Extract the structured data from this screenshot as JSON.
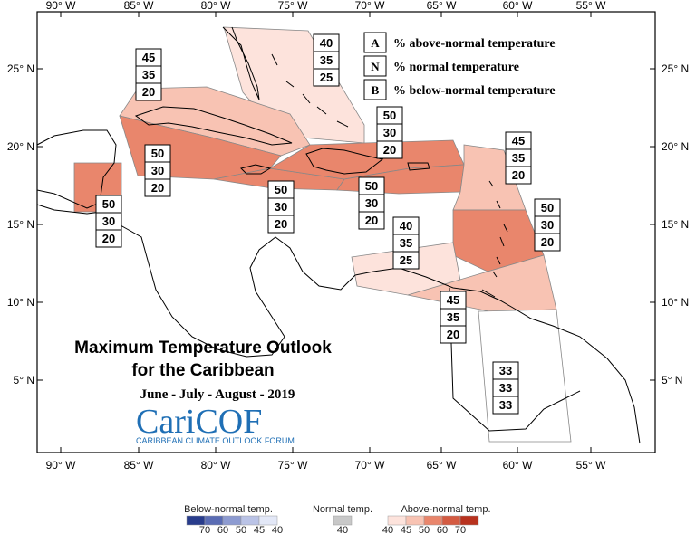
{
  "map": {
    "title_line1": "Maximum Temperature Outlook",
    "title_line2": "for the Caribbean",
    "period": "June - July - August - 2019"
  },
  "logo": {
    "text_cari": "Cari",
    "text_cof": "COF",
    "tagline": "CARIBBEAN CLIMATE OUTLOOK FORUM"
  },
  "axes": {
    "lon_labels": [
      "90° W",
      "85° W",
      "80° W",
      "75° W",
      "70° W",
      "65° W",
      "60° W",
      "55° W"
    ],
    "lat_labels": [
      "25° N",
      "20° N",
      "15° N",
      "10° N",
      "5° N"
    ]
  },
  "key": [
    {
      "letter": "A",
      "desc": "% above-normal temperature"
    },
    {
      "letter": "N",
      "desc": "% normal temperature"
    },
    {
      "letter": "B",
      "desc": "% below-normal temperature"
    }
  ],
  "regions": [
    {
      "id": "bahamas",
      "values": [
        "40",
        "35",
        "25"
      ],
      "fill": "#fde3dc"
    },
    {
      "id": "cuba",
      "values": [
        "45",
        "35",
        "20"
      ],
      "fill": "#f8c3b3"
    },
    {
      "id": "hispaniola-north",
      "values": [
        "50",
        "30",
        "20"
      ],
      "fill": "#e9866c"
    },
    {
      "id": "west-caribbean",
      "values": [
        "50",
        "30",
        "20"
      ],
      "fill": "#e9866c"
    },
    {
      "id": "belize",
      "values": [
        "50",
        "30",
        "20"
      ],
      "fill": "#e9866c"
    },
    {
      "id": "jamaica",
      "values": [
        "50",
        "30",
        "20"
      ],
      "fill": "#e9866c"
    },
    {
      "id": "puerto-rico",
      "values": [
        "50",
        "30",
        "20"
      ],
      "fill": "#e9866c"
    },
    {
      "id": "leeward-islands",
      "values": [
        "45",
        "35",
        "20"
      ],
      "fill": "#f8c3b3"
    },
    {
      "id": "windward-islands",
      "values": [
        "50",
        "30",
        "20"
      ],
      "fill": "#e9866c"
    },
    {
      "id": "abc-islands",
      "values": [
        "40",
        "35",
        "25"
      ],
      "fill": "#fde3dc"
    },
    {
      "id": "trinidad",
      "values": [
        "45",
        "35",
        "20"
      ],
      "fill": "#f8c3b3"
    },
    {
      "id": "guianas",
      "values": [
        "33",
        "33",
        "33"
      ],
      "fill": "#ffffff"
    }
  ],
  "legend": {
    "below": {
      "title": "Below-normal temp.",
      "labels": [
        "70",
        "60",
        "50",
        "45",
        "40"
      ],
      "colors": [
        "#283c8c",
        "#5a6cb4",
        "#8d9bd1",
        "#bac3e6",
        "#e3e8f7"
      ]
    },
    "normal": {
      "title": "Normal temp.",
      "labels": [
        "40"
      ],
      "colors": [
        "#c8c8c8"
      ]
    },
    "above": {
      "title": "Above-normal temp.",
      "labels": [
        "40",
        "45",
        "50",
        "60",
        "70"
      ],
      "colors": [
        "#fde3dc",
        "#f8c3b3",
        "#e9866c",
        "#d45b42",
        "#b8321e"
      ]
    }
  }
}
